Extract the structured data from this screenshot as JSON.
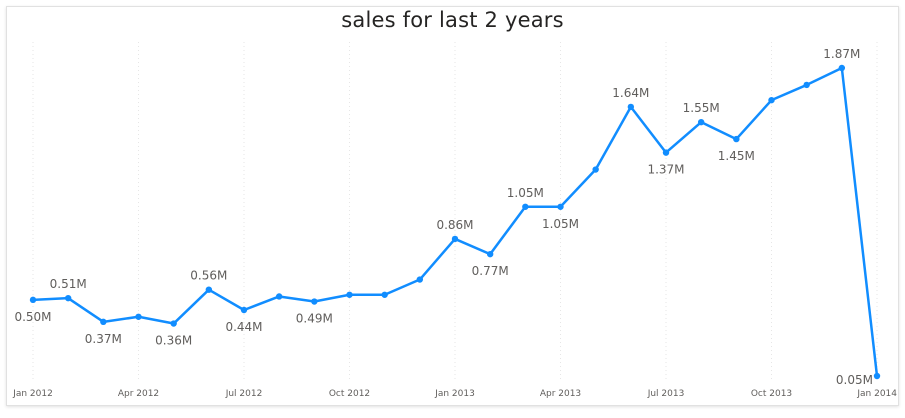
{
  "chart_data": {
    "type": "line",
    "title": "sales for last 2 years",
    "xlabel": "",
    "ylabel": "",
    "color": "#118DFF",
    "ylim": [
      0,
      2.0
    ],
    "grid": "vertical-dotted",
    "x_ticks": [
      "Jan 2012",
      "Apr 2012",
      "Jul 2012",
      "Oct 2012",
      "Jan 2013",
      "Apr 2013",
      "Jul 2013",
      "Oct 2013",
      "Jan 2014"
    ],
    "x": [
      "2012-01",
      "2012-02",
      "2012-03",
      "2012-04",
      "2012-05",
      "2012-06",
      "2012-07",
      "2012-08",
      "2012-09",
      "2012-10",
      "2012-11",
      "2012-12",
      "2013-01",
      "2013-02",
      "2013-03",
      "2013-04",
      "2013-05",
      "2013-06",
      "2013-07",
      "2013-08",
      "2013-09",
      "2013-10",
      "2013-11",
      "2013-12",
      "2014-01"
    ],
    "values": [
      0.5,
      0.51,
      0.37,
      0.4,
      0.36,
      0.56,
      0.44,
      0.52,
      0.49,
      0.53,
      0.53,
      0.62,
      0.86,
      0.77,
      1.05,
      1.05,
      1.27,
      1.64,
      1.37,
      1.55,
      1.45,
      1.68,
      1.77,
      1.87,
      0.05
    ],
    "data_labels": [
      {
        "index": 0,
        "text": "0.50M",
        "pos": "below"
      },
      {
        "index": 1,
        "text": "0.51M",
        "pos": "above"
      },
      {
        "index": 2,
        "text": "0.37M",
        "pos": "below"
      },
      {
        "index": 4,
        "text": "0.36M",
        "pos": "below"
      },
      {
        "index": 5,
        "text": "0.56M",
        "pos": "above"
      },
      {
        "index": 6,
        "text": "0.44M",
        "pos": "below"
      },
      {
        "index": 8,
        "text": "0.49M",
        "pos": "below"
      },
      {
        "index": 12,
        "text": "0.86M",
        "pos": "above"
      },
      {
        "index": 13,
        "text": "0.77M",
        "pos": "below"
      },
      {
        "index": 14,
        "text": "1.05M",
        "pos": "above"
      },
      {
        "index": 15,
        "text": "1.05M",
        "pos": "below"
      },
      {
        "index": 17,
        "text": "1.64M",
        "pos": "above"
      },
      {
        "index": 18,
        "text": "1.37M",
        "pos": "below"
      },
      {
        "index": 19,
        "text": "1.55M",
        "pos": "above"
      },
      {
        "index": 20,
        "text": "1.45M",
        "pos": "below"
      },
      {
        "index": 23,
        "text": "1.87M",
        "pos": "above"
      },
      {
        "index": 24,
        "text": "0.05M",
        "pos": "left"
      }
    ]
  }
}
